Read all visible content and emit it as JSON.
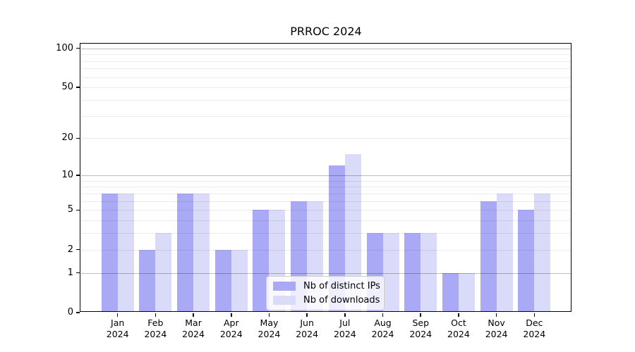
{
  "chart_data": {
    "type": "bar",
    "title": "PRROC 2024",
    "categories": [
      "Jan",
      "Feb",
      "Mar",
      "Apr",
      "May",
      "Jun",
      "Jul",
      "Aug",
      "Sep",
      "Oct",
      "Nov",
      "Dec"
    ],
    "category_year": "2024",
    "series": [
      {
        "name": "Nb of distinct IPs",
        "color": "#a9a9f5",
        "values": [
          7,
          2,
          7,
          2,
          5,
          6,
          12,
          3,
          3,
          1,
          6,
          5
        ]
      },
      {
        "name": "Nb of downloads",
        "color": "#dadaf9",
        "values": [
          7,
          3,
          7,
          2,
          5,
          6,
          15,
          3,
          3,
          1,
          7,
          7
        ]
      }
    ],
    "yscale": "log1p",
    "ylim": [
      0,
      110
    ],
    "yticks_labeled": [
      0,
      1,
      2,
      5,
      10,
      20,
      50,
      100
    ],
    "gridlines_major": [
      1,
      10,
      100
    ],
    "gridlines_minor": [
      2,
      3,
      4,
      5,
      6,
      7,
      8,
      9,
      20,
      30,
      40,
      50,
      60,
      70,
      80,
      90
    ],
    "grid": true,
    "legend_position": "lower center",
    "colors": {
      "axis": "#000000",
      "major_grid": "rgba(0,0,0,0.26)",
      "minor_grid": "rgba(0,0,0,0.08)",
      "legend_border": "#cccccc"
    }
  }
}
